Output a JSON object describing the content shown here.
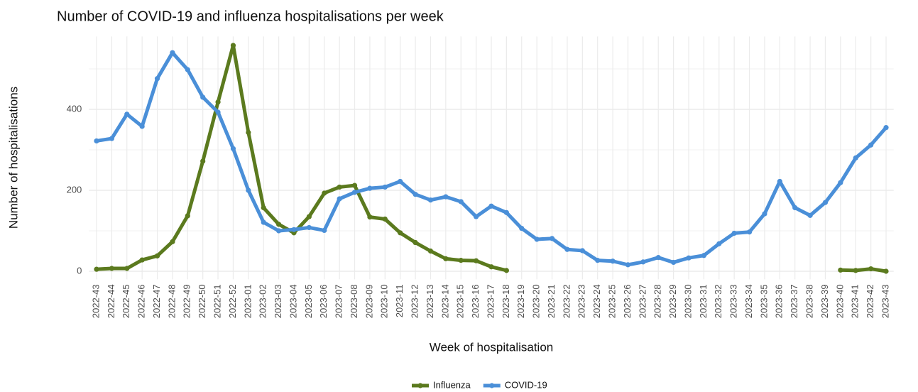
{
  "chart_data": {
    "type": "line",
    "title": "Number of COVID-19 and influenza hospitalisations per week",
    "x_label": "Week of hospitalisation",
    "y_label": "Number of hospitalisations",
    "categories": [
      "2022-43",
      "2022-44",
      "2022-45",
      "2022-46",
      "2022-47",
      "2022-48",
      "2022-49",
      "2022-50",
      "2022-51",
      "2022-52",
      "2023-01",
      "2023-02",
      "2023-03",
      "2023-04",
      "2023-05",
      "2023-06",
      "2023-07",
      "2023-08",
      "2023-09",
      "2023-10",
      "2023-11",
      "2023-12",
      "2023-13",
      "2023-14",
      "2023-15",
      "2023-16",
      "2023-17",
      "2023-18",
      "2023-19",
      "2023-20",
      "2023-21",
      "2023-22",
      "2023-23",
      "2023-24",
      "2023-25",
      "2023-26",
      "2023-27",
      "2023-28",
      "2023-29",
      "2023-30",
      "2023-31",
      "2023-32",
      "2023-33",
      "2023-34",
      "2023-35",
      "2023-36",
      "2023-37",
      "2023-38",
      "2023-39",
      "2023-40",
      "2023-41",
      "2023-42",
      "2023-43"
    ],
    "series": [
      {
        "name": "Influenza",
        "color": "#5b7a1e",
        "values": [
          5,
          7,
          7,
          28,
          38,
          73,
          137,
          272,
          418,
          558,
          343,
          157,
          116,
          95,
          135,
          193,
          208,
          212,
          134,
          129,
          95,
          71,
          50,
          31,
          27,
          26,
          11,
          2,
          null,
          null,
          null,
          null,
          null,
          null,
          null,
          null,
          null,
          null,
          null,
          null,
          null,
          null,
          null,
          null,
          null,
          null,
          null,
          null,
          null,
          3,
          2,
          6,
          0
        ]
      },
      {
        "name": "COVID-19",
        "color": "#4a8fd8",
        "values": [
          322,
          328,
          388,
          358,
          476,
          540,
          498,
          430,
          393,
          303,
          200,
          121,
          100,
          103,
          108,
          101,
          179,
          195,
          205,
          208,
          222,
          190,
          176,
          184,
          172,
          135,
          161,
          145,
          106,
          79,
          81,
          54,
          51,
          27,
          25,
          16,
          23,
          34,
          22,
          33,
          39,
          68,
          94,
          97,
          142,
          222,
          157,
          138,
          170,
          219,
          280,
          312,
          355
        ]
      }
    ],
    "ylim": [
      -20,
      580
    ],
    "yticks": [
      0,
      200,
      400
    ],
    "minor_yticks": [
      100,
      300,
      500
    ],
    "grid": true,
    "legend": "bottom"
  }
}
